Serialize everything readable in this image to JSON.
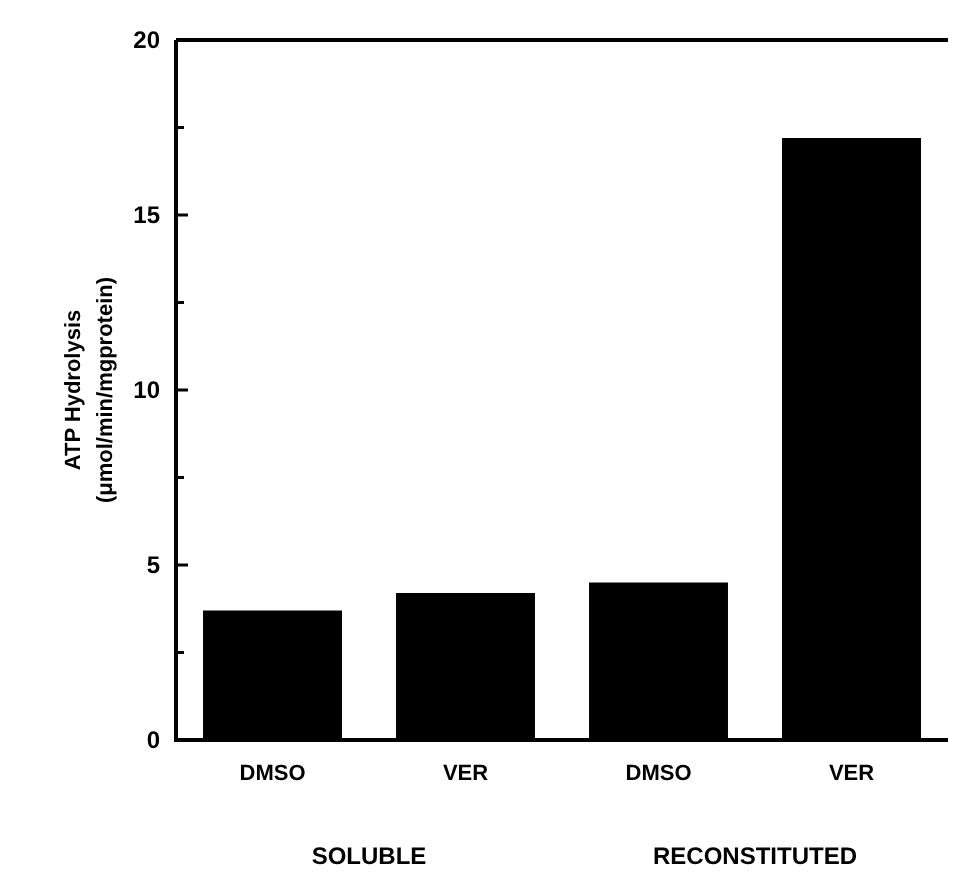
{
  "chart_data": {
    "type": "bar",
    "ylabel": "ATP Hydrolysis\n(μmol/min/mgprotein)",
    "categories": [
      "DMSO",
      "VER",
      "DMSO",
      "VER"
    ],
    "values": [
      3.7,
      4.2,
      4.5,
      17.2
    ],
    "color": "#000000",
    "ylim": [
      0,
      20
    ],
    "yticks": [
      0,
      {
        "value": 2.5,
        "label": null
      },
      5,
      {
        "value": 7.5,
        "label": null
      },
      10,
      {
        "value": 12.5,
        "label": null
      },
      15,
      {
        "value": 17.5,
        "label": null
      },
      20
    ],
    "annotations": [
      "SOLUBLE",
      "RECONSTITUTED"
    ]
  }
}
